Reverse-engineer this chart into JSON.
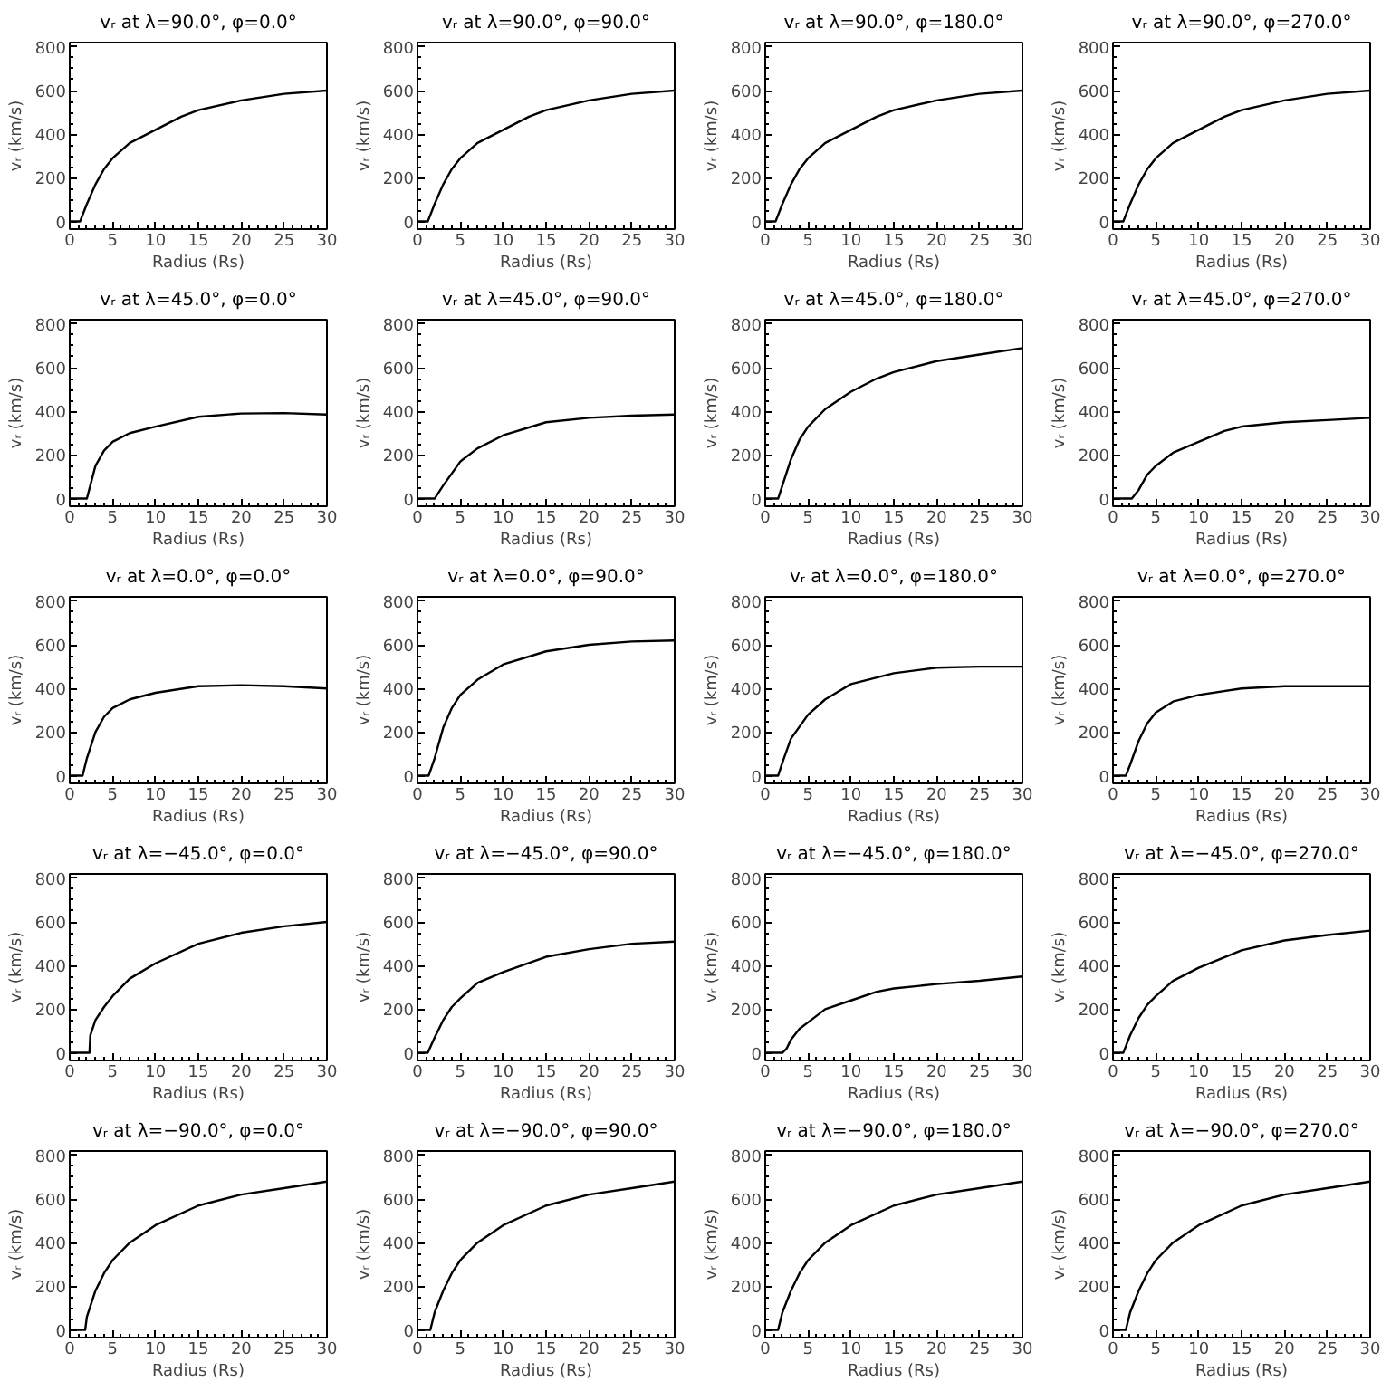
{
  "chart_data": [
    {
      "type": "line",
      "title": "vᵣ at λ=90.0°, φ=0.0°",
      "xlabel": "Radius (Rs)",
      "ylabel": "vᵣ (km/s)",
      "color": "#000000",
      "xlim": [
        0,
        30
      ],
      "ylim": [
        -35,
        820
      ],
      "xticks": [
        0,
        5,
        10,
        15,
        20,
        25,
        30
      ],
      "yticks": [
        0,
        200,
        400,
        600,
        800
      ],
      "x": [
        0,
        1.2,
        2,
        3,
        4,
        5,
        7,
        10,
        13,
        15,
        20,
        25,
        30
      ],
      "values": [
        0,
        0,
        80,
        170,
        240,
        290,
        360,
        420,
        480,
        510,
        555,
        585,
        600
      ]
    },
    {
      "type": "line",
      "title": "vᵣ at λ=90.0°, φ=90.0°",
      "xlabel": "Radius (Rs)",
      "ylabel": "vᵣ (km/s)",
      "color": "#000000",
      "xlim": [
        0,
        30
      ],
      "ylim": [
        -35,
        820
      ],
      "xticks": [
        0,
        5,
        10,
        15,
        20,
        25,
        30
      ],
      "yticks": [
        0,
        200,
        400,
        600,
        800
      ],
      "x": [
        0,
        1.2,
        2,
        3,
        4,
        5,
        7,
        10,
        13,
        15,
        20,
        25,
        30
      ],
      "values": [
        0,
        0,
        80,
        170,
        240,
        290,
        360,
        420,
        480,
        510,
        555,
        585,
        600
      ]
    },
    {
      "type": "line",
      "title": "vᵣ at λ=90.0°, φ=180.0°",
      "xlabel": "Radius (Rs)",
      "ylabel": "vᵣ (km/s)",
      "color": "#000000",
      "xlim": [
        0,
        30
      ],
      "ylim": [
        -35,
        820
      ],
      "xticks": [
        0,
        5,
        10,
        15,
        20,
        25,
        30
      ],
      "yticks": [
        0,
        200,
        400,
        600,
        800
      ],
      "x": [
        0,
        1.2,
        2,
        3,
        4,
        5,
        7,
        10,
        13,
        15,
        20,
        25,
        30
      ],
      "values": [
        0,
        0,
        80,
        170,
        240,
        290,
        360,
        420,
        480,
        510,
        555,
        585,
        600
      ]
    },
    {
      "type": "line",
      "title": "vᵣ at λ=90.0°, φ=270.0°",
      "xlabel": "Radius (Rs)",
      "ylabel": "vᵣ (km/s)",
      "color": "#000000",
      "xlim": [
        0,
        30
      ],
      "ylim": [
        -35,
        820
      ],
      "xticks": [
        0,
        5,
        10,
        15,
        20,
        25,
        30
      ],
      "yticks": [
        0,
        200,
        400,
        600,
        800
      ],
      "x": [
        0,
        1.2,
        2,
        3,
        4,
        5,
        7,
        10,
        13,
        15,
        20,
        25,
        30
      ],
      "values": [
        0,
        0,
        80,
        170,
        240,
        290,
        360,
        420,
        480,
        510,
        555,
        585,
        600
      ]
    },
    {
      "type": "line",
      "title": "vᵣ at λ=45.0°, φ=0.0°",
      "xlabel": "Radius (Rs)",
      "ylabel": "vᵣ (km/s)",
      "color": "#000000",
      "xlim": [
        0,
        30
      ],
      "ylim": [
        -35,
        820
      ],
      "xticks": [
        0,
        5,
        10,
        15,
        20,
        25,
        30
      ],
      "yticks": [
        0,
        200,
        400,
        600,
        800
      ],
      "x": [
        0,
        2,
        3,
        4,
        5,
        7,
        10,
        15,
        20,
        25,
        30
      ],
      "values": [
        0,
        0,
        150,
        220,
        260,
        300,
        330,
        375,
        390,
        392,
        385
      ]
    },
    {
      "type": "line",
      "title": "vᵣ at λ=45.0°, φ=90.0°",
      "xlabel": "Radius (Rs)",
      "ylabel": "vᵣ (km/s)",
      "color": "#000000",
      "xlim": [
        0,
        30
      ],
      "ylim": [
        -35,
        820
      ],
      "xticks": [
        0,
        5,
        10,
        15,
        20,
        25,
        30
      ],
      "yticks": [
        0,
        200,
        400,
        600,
        800
      ],
      "x": [
        0,
        2,
        3,
        5,
        7,
        10,
        15,
        20,
        25,
        30
      ],
      "values": [
        0,
        0,
        60,
        170,
        230,
        290,
        350,
        370,
        380,
        385
      ]
    },
    {
      "type": "line",
      "title": "vᵣ at λ=45.0°, φ=180.0°",
      "xlabel": "Radius (Rs)",
      "ylabel": "vᵣ (km/s)",
      "color": "#000000",
      "xlim": [
        0,
        30
      ],
      "ylim": [
        -35,
        820
      ],
      "xticks": [
        0,
        5,
        10,
        15,
        20,
        25,
        30
      ],
      "yticks": [
        0,
        200,
        400,
        600,
        800
      ],
      "x": [
        0,
        1.5,
        2,
        3,
        4,
        5,
        7,
        10,
        13,
        15,
        20,
        25,
        30
      ],
      "values": [
        0,
        0,
        60,
        180,
        270,
        330,
        410,
        490,
        550,
        580,
        630,
        660,
        690
      ]
    },
    {
      "type": "line",
      "title": "vᵣ at λ=45.0°, φ=270.0°",
      "xlabel": "Radius (Rs)",
      "ylabel": "vᵣ (km/s)",
      "color": "#000000",
      "xlim": [
        0,
        30
      ],
      "ylim": [
        -35,
        820
      ],
      "xticks": [
        0,
        5,
        10,
        15,
        20,
        25,
        30
      ],
      "yticks": [
        0,
        200,
        400,
        600,
        800
      ],
      "x": [
        0,
        2.2,
        3,
        4,
        5,
        7,
        10,
        13,
        15,
        20,
        25,
        30
      ],
      "values": [
        0,
        0,
        40,
        110,
        150,
        210,
        260,
        310,
        330,
        350,
        360,
        370
      ]
    },
    {
      "type": "line",
      "title": "vᵣ at λ=0.0°, φ=0.0°",
      "xlabel": "Radius (Rs)",
      "ylabel": "vᵣ (km/s)",
      "color": "#000000",
      "xlim": [
        0,
        30
      ],
      "ylim": [
        -35,
        820
      ],
      "xticks": [
        0,
        5,
        10,
        15,
        20,
        25,
        30
      ],
      "yticks": [
        0,
        200,
        400,
        600,
        800
      ],
      "x": [
        0,
        1.5,
        2,
        3,
        4,
        5,
        7,
        10,
        15,
        20,
        25,
        30
      ],
      "values": [
        0,
        0,
        80,
        200,
        270,
        310,
        350,
        380,
        410,
        415,
        410,
        400
      ]
    },
    {
      "type": "line",
      "title": "vᵣ at λ=0.0°, φ=90.0°",
      "xlabel": "Radius (Rs)",
      "ylabel": "vᵣ (km/s)",
      "color": "#000000",
      "xlim": [
        0,
        30
      ],
      "ylim": [
        -35,
        820
      ],
      "xticks": [
        0,
        5,
        10,
        15,
        20,
        25,
        30
      ],
      "yticks": [
        0,
        200,
        400,
        600,
        800
      ],
      "x": [
        0,
        1.3,
        2,
        3,
        4,
        5,
        7,
        10,
        15,
        20,
        25,
        30
      ],
      "values": [
        0,
        0,
        80,
        220,
        310,
        370,
        440,
        510,
        570,
        600,
        615,
        620
      ]
    },
    {
      "type": "line",
      "title": "vᵣ at λ=0.0°, φ=180.0°",
      "xlabel": "Radius (Rs)",
      "ylabel": "vᵣ (km/s)",
      "color": "#000000",
      "xlim": [
        0,
        30
      ],
      "ylim": [
        -35,
        820
      ],
      "xticks": [
        0,
        5,
        10,
        15,
        20,
        25,
        30
      ],
      "yticks": [
        0,
        200,
        400,
        600,
        800
      ],
      "x": [
        0,
        1.5,
        2,
        3,
        5,
        7,
        10,
        15,
        20,
        25,
        30
      ],
      "values": [
        0,
        0,
        60,
        170,
        280,
        350,
        420,
        470,
        495,
        500,
        500
      ]
    },
    {
      "type": "line",
      "title": "vᵣ at λ=0.0°, φ=270.0°",
      "xlabel": "Radius (Rs)",
      "ylabel": "vᵣ (km/s)",
      "color": "#000000",
      "xlim": [
        0,
        30
      ],
      "ylim": [
        -35,
        820
      ],
      "xticks": [
        0,
        5,
        10,
        15,
        20,
        25,
        30
      ],
      "yticks": [
        0,
        200,
        400,
        600,
        800
      ],
      "x": [
        0,
        1.5,
        2,
        3,
        4,
        5,
        7,
        10,
        15,
        20,
        25,
        30
      ],
      "values": [
        0,
        0,
        50,
        160,
        240,
        290,
        340,
        370,
        400,
        410,
        410,
        410
      ]
    },
    {
      "type": "line",
      "title": "vᵣ at λ=−45.0°, φ=0.0°",
      "xlabel": "Radius (Rs)",
      "ylabel": "vᵣ (km/s)",
      "color": "#000000",
      "xlim": [
        0,
        30
      ],
      "ylim": [
        -35,
        820
      ],
      "xticks": [
        0,
        5,
        10,
        15,
        20,
        25,
        30
      ],
      "yticks": [
        0,
        200,
        400,
        600,
        800
      ],
      "x": [
        0,
        2.3,
        2.4,
        3,
        4,
        5,
        7,
        10,
        15,
        20,
        25,
        30
      ],
      "values": [
        0,
        0,
        80,
        150,
        210,
        260,
        340,
        410,
        500,
        550,
        580,
        600
      ]
    },
    {
      "type": "line",
      "title": "vᵣ at λ=−45.0°, φ=90.0°",
      "xlabel": "Radius (Rs)",
      "ylabel": "vᵣ (km/s)",
      "color": "#000000",
      "xlim": [
        0,
        30
      ],
      "ylim": [
        -35,
        820
      ],
      "xticks": [
        0,
        5,
        10,
        15,
        20,
        25,
        30
      ],
      "yticks": [
        0,
        200,
        400,
        600,
        800
      ],
      "x": [
        0,
        1.2,
        2,
        3,
        4,
        5,
        7,
        10,
        15,
        20,
        25,
        30
      ],
      "values": [
        0,
        0,
        70,
        150,
        210,
        250,
        320,
        370,
        440,
        475,
        500,
        510
      ]
    },
    {
      "type": "line",
      "title": "vᵣ at λ=−45.0°, φ=180.0°",
      "xlabel": "Radius (Rs)",
      "ylabel": "vᵣ (km/s)",
      "color": "#000000",
      "xlim": [
        0,
        30
      ],
      "ylim": [
        -35,
        820
      ],
      "xticks": [
        0,
        5,
        10,
        15,
        20,
        25,
        30
      ],
      "yticks": [
        0,
        200,
        400,
        600,
        800
      ],
      "x": [
        0,
        2,
        2.5,
        3,
        4,
        5,
        7,
        10,
        13,
        15,
        20,
        25,
        30
      ],
      "values": [
        0,
        0,
        20,
        60,
        110,
        140,
        200,
        240,
        280,
        295,
        315,
        330,
        350
      ]
    },
    {
      "type": "line",
      "title": "vᵣ at λ=−45.0°, φ=270.0°",
      "xlabel": "Radius (Rs)",
      "ylabel": "vᵣ (km/s)",
      "color": "#000000",
      "xlim": [
        0,
        30
      ],
      "ylim": [
        -35,
        820
      ],
      "xticks": [
        0,
        5,
        10,
        15,
        20,
        25,
        30
      ],
      "yticks": [
        0,
        200,
        400,
        600,
        800
      ],
      "x": [
        0,
        1.2,
        2,
        3,
        4,
        5,
        7,
        10,
        15,
        20,
        25,
        30
      ],
      "values": [
        0,
        0,
        80,
        160,
        220,
        260,
        330,
        390,
        470,
        515,
        540,
        560
      ]
    },
    {
      "type": "line",
      "title": "vᵣ at λ=−90.0°, φ=0.0°",
      "xlabel": "Radius (Rs)",
      "ylabel": "vᵣ (km/s)",
      "color": "#000000",
      "xlim": [
        0,
        30
      ],
      "ylim": [
        -35,
        820
      ],
      "xticks": [
        0,
        5,
        10,
        15,
        20,
        25,
        30
      ],
      "yticks": [
        0,
        200,
        400,
        600,
        800
      ],
      "x": [
        0,
        1.8,
        2,
        3,
        4,
        5,
        7,
        10,
        15,
        20,
        25,
        30
      ],
      "values": [
        0,
        0,
        60,
        180,
        260,
        320,
        400,
        480,
        570,
        620,
        650,
        680
      ]
    },
    {
      "type": "line",
      "title": "vᵣ at λ=−90.0°, φ=90.0°",
      "xlabel": "Radius (Rs)",
      "ylabel": "vᵣ (km/s)",
      "color": "#000000",
      "xlim": [
        0,
        30
      ],
      "ylim": [
        -35,
        820
      ],
      "xticks": [
        0,
        5,
        10,
        15,
        20,
        25,
        30
      ],
      "yticks": [
        0,
        200,
        400,
        600,
        800
      ],
      "x": [
        0,
        1.5,
        2,
        3,
        4,
        5,
        7,
        10,
        15,
        20,
        25,
        30
      ],
      "values": [
        0,
        0,
        80,
        180,
        260,
        320,
        400,
        480,
        570,
        620,
        650,
        680
      ]
    },
    {
      "type": "line",
      "title": "vᵣ at λ=−90.0°, φ=180.0°",
      "xlabel": "Radius (Rs)",
      "ylabel": "vᵣ (km/s)",
      "color": "#000000",
      "xlim": [
        0,
        30
      ],
      "ylim": [
        -35,
        820
      ],
      "xticks": [
        0,
        5,
        10,
        15,
        20,
        25,
        30
      ],
      "yticks": [
        0,
        200,
        400,
        600,
        800
      ],
      "x": [
        0,
        1.5,
        2,
        3,
        4,
        5,
        7,
        10,
        15,
        20,
        25,
        30
      ],
      "values": [
        0,
        0,
        80,
        180,
        260,
        320,
        400,
        480,
        570,
        620,
        650,
        680
      ]
    },
    {
      "type": "line",
      "title": "vᵣ at λ=−90.0°, φ=270.0°",
      "xlabel": "Radius (Rs)",
      "ylabel": "vᵣ (km/s)",
      "color": "#000000",
      "xlim": [
        0,
        30
      ],
      "ylim": [
        -35,
        820
      ],
      "xticks": [
        0,
        5,
        10,
        15,
        20,
        25,
        30
      ],
      "yticks": [
        0,
        200,
        400,
        600,
        800
      ],
      "x": [
        0,
        1.5,
        2,
        3,
        4,
        5,
        7,
        10,
        15,
        20,
        25,
        30
      ],
      "values": [
        0,
        0,
        80,
        180,
        260,
        320,
        400,
        480,
        570,
        620,
        650,
        680
      ]
    }
  ]
}
